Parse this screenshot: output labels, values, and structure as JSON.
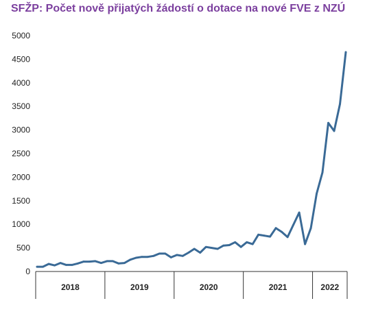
{
  "chart_data": {
    "type": "line",
    "title": "SFŽP: Počet nově přijatých žádostí o dotace na nové FVE z NZÚ",
    "xlabel": "",
    "ylabel": "",
    "ylim": [
      0,
      5000
    ],
    "yticks": [
      "0",
      "500",
      "1000",
      "1500",
      "2000",
      "2500",
      "3000",
      "3500",
      "4000",
      "4500",
      "5000"
    ],
    "year_groups": [
      {
        "label": "2018",
        "months": 12
      },
      {
        "label": "2019",
        "months": 12
      },
      {
        "label": "2020",
        "months": 12
      },
      {
        "label": "2021",
        "months": 12
      },
      {
        "label": "2022",
        "months": 6
      }
    ],
    "series": [
      {
        "color": "#3a6a96",
        "values": [
          100,
          100,
          160,
          130,
          180,
          140,
          140,
          170,
          210,
          210,
          220,
          180,
          220,
          220,
          170,
          180,
          250,
          290,
          310,
          310,
          330,
          380,
          380,
          300,
          350,
          330,
          400,
          480,
          400,
          520,
          500,
          480,
          550,
          560,
          620,
          520,
          620,
          580,
          780,
          760,
          740,
          920,
          840,
          730,
          990,
          1250,
          580,
          920,
          1650,
          2100,
          3150,
          2980,
          3550,
          4650
        ]
      }
    ],
    "grid": false
  }
}
